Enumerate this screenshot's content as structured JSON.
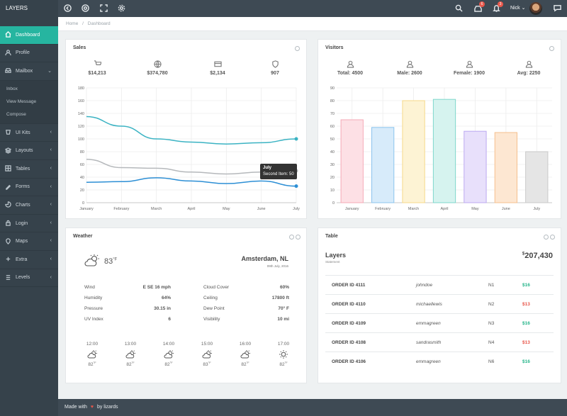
{
  "app": {
    "brand": "LAYERS",
    "user": "Nick",
    "notifications_a": "6",
    "notifications_b": "3"
  },
  "breadcrumb": {
    "home": "Home",
    "sep": "/",
    "current": "Dashboard"
  },
  "sidebar": {
    "items": [
      {
        "label": "Dashboard",
        "icon": "home-icon"
      },
      {
        "label": "Profile",
        "icon": "user-icon"
      },
      {
        "label": "Mailbox",
        "icon": "inbox-icon"
      },
      {
        "label": "UI Kits",
        "icon": "layers-icon"
      },
      {
        "label": "Layouts",
        "icon": "stack-icon"
      },
      {
        "label": "Tables",
        "icon": "grid-icon"
      },
      {
        "label": "Forms",
        "icon": "pencil-icon"
      },
      {
        "label": "Charts",
        "icon": "chart-icon"
      },
      {
        "label": "Login",
        "icon": "lock-icon"
      },
      {
        "label": "Maps",
        "icon": "map-pin-icon"
      },
      {
        "label": "Extra",
        "icon": "plus-icon"
      },
      {
        "label": "Levels",
        "icon": "levels-icon"
      }
    ],
    "mailbox_sub": [
      "Inbox",
      "View Message",
      "Compose"
    ]
  },
  "sales": {
    "title": "Sales",
    "stats": [
      {
        "value": "$14,213",
        "icon": "cart-icon"
      },
      {
        "value": "$374,780",
        "icon": "globe-icon"
      },
      {
        "value": "$2,134",
        "icon": "card-icon"
      },
      {
        "value": "907",
        "icon": "shield-icon"
      }
    ],
    "tooltip": {
      "title": "July",
      "text": "Second Item: 50"
    }
  },
  "visitors": {
    "title": "Visitors",
    "stats": [
      {
        "value": "Total: 4500"
      },
      {
        "value": "Male: 2600"
      },
      {
        "value": "Female: 1900"
      },
      {
        "value": "Avg: 2250"
      }
    ]
  },
  "chart_data": [
    {
      "type": "line",
      "title": "Sales",
      "categories": [
        "January",
        "February",
        "March",
        "April",
        "May",
        "June",
        "July"
      ],
      "series": [
        {
          "name": "",
          "values": [
            135,
            120,
            100,
            95,
            92,
            94,
            100
          ],
          "color": "#3bb3c3"
        },
        {
          "name": "Second Item",
          "values": [
            68,
            55,
            54,
            48,
            45,
            48,
            50
          ],
          "color": "#b5b8bb"
        },
        {
          "name": "",
          "values": [
            32,
            33,
            39,
            34,
            30,
            34,
            26
          ],
          "color": "#2d8fd5"
        }
      ],
      "ylim": [
        0,
        180
      ],
      "yticks": [
        0,
        20,
        40,
        60,
        80,
        100,
        120,
        140,
        160,
        180
      ],
      "grid": true
    },
    {
      "type": "bar",
      "title": "Visitors",
      "categories": [
        "January",
        "February",
        "March",
        "April",
        "May",
        "June",
        "July"
      ],
      "values": [
        65,
        59,
        80,
        81,
        56,
        55,
        40
      ],
      "colors": [
        "#fde0e5",
        "#d7ebfa",
        "#fdf3d4",
        "#d6f3ef",
        "#e8e0fb",
        "#fde7d2",
        "#e5e5e5"
      ],
      "borders": [
        "#f4a9b6",
        "#8cc4ee",
        "#f6d98a",
        "#7fd7cb",
        "#bca9f1",
        "#f5bf8d",
        "#c9c9c9"
      ],
      "ylim": [
        0,
        90
      ],
      "yticks": [
        0,
        10,
        20,
        30,
        40,
        50,
        60,
        70,
        80,
        90
      ],
      "grid": true
    }
  ],
  "weather": {
    "title": "Weather",
    "temp": "83",
    "unit": "°F",
    "city": "Amsterdam, NL",
    "date": "09th July, 2016",
    "left": [
      {
        "label": "Wind",
        "value": "E SE 16 mph"
      },
      {
        "label": "Humidity",
        "value": "64%"
      },
      {
        "label": "Pressure",
        "value": "30.15 in"
      },
      {
        "label": "UV Index",
        "value": "6"
      }
    ],
    "right": [
      {
        "label": "Cloud Cover",
        "value": "60%"
      },
      {
        "label": "Ceiling",
        "value": "17800 ft"
      },
      {
        "label": "Dew Point",
        "value": "70° F"
      },
      {
        "label": "Visibility",
        "value": "10 mi"
      }
    ],
    "forecast": [
      {
        "time": "12:00",
        "temp": "82",
        "icon": "cloud-sun-icon"
      },
      {
        "time": "13:00",
        "temp": "82",
        "icon": "cloud-sun-icon"
      },
      {
        "time": "14:00",
        "temp": "82",
        "icon": "cloud-sun-icon"
      },
      {
        "time": "15:00",
        "temp": "83",
        "icon": "cloud-sun-icon"
      },
      {
        "time": "16:00",
        "temp": "82",
        "icon": "cloud-sun-icon"
      },
      {
        "time": "17:00",
        "temp": "82",
        "icon": "sun-icon"
      }
    ]
  },
  "table": {
    "title": "Table",
    "heading": "Layers",
    "subheading": "Statement",
    "currency": "$",
    "total": "207,430",
    "rows": [
      {
        "order": "ORDER ID 4111",
        "user": "johndoe",
        "code": "N1",
        "amount": "$16",
        "color": "#26b58a"
      },
      {
        "order": "ORDER ID 4110",
        "user": "michaellewis",
        "code": "N2",
        "amount": "$13",
        "color": "#e8574b"
      },
      {
        "order": "ORDER ID 4109",
        "user": "emmagreen",
        "code": "N3",
        "amount": "$16",
        "color": "#26b58a"
      },
      {
        "order": "ORDER ID 4108",
        "user": "sandrasmith",
        "code": "N4",
        "amount": "$13",
        "color": "#e8574b"
      },
      {
        "order": "ORDER ID 4106",
        "user": "emmagreen",
        "code": "N6",
        "amount": "$16",
        "color": "#26b58a"
      }
    ]
  },
  "footer": {
    "made": "Made with",
    "by": "by lizards"
  }
}
